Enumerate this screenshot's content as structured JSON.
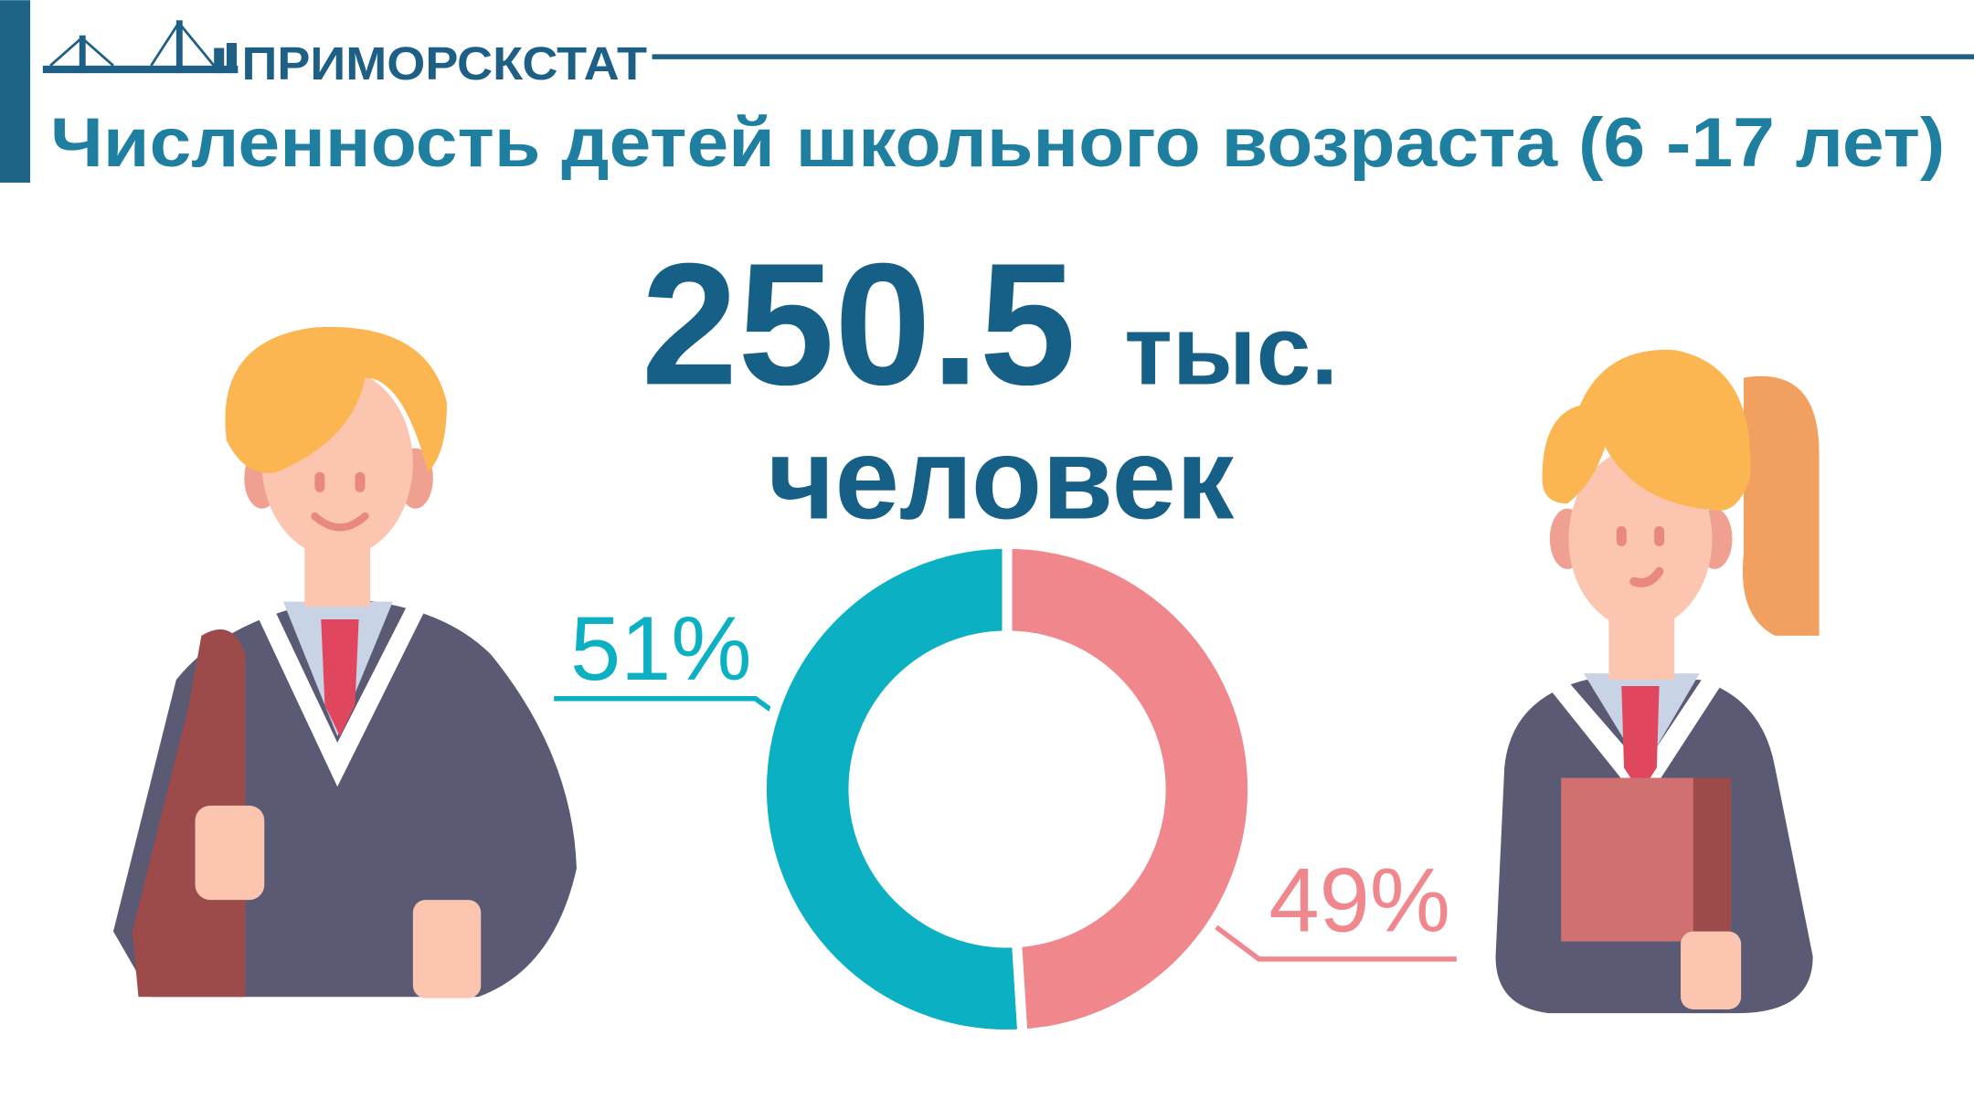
{
  "header": {
    "logo": "ПРИМОРСКСТАТ"
  },
  "title": "Численность детей школьного возраста (6 -17 лет)",
  "total": 250.5,
  "total_unit": "тыс.",
  "total_caption": "человек",
  "chart_data": {
    "type": "donut",
    "values": [
      51,
      49
    ],
    "value_labels": [
      "51%",
      "49%"
    ],
    "colors": [
      "#0bb1c3",
      "#f0878d"
    ]
  }
}
